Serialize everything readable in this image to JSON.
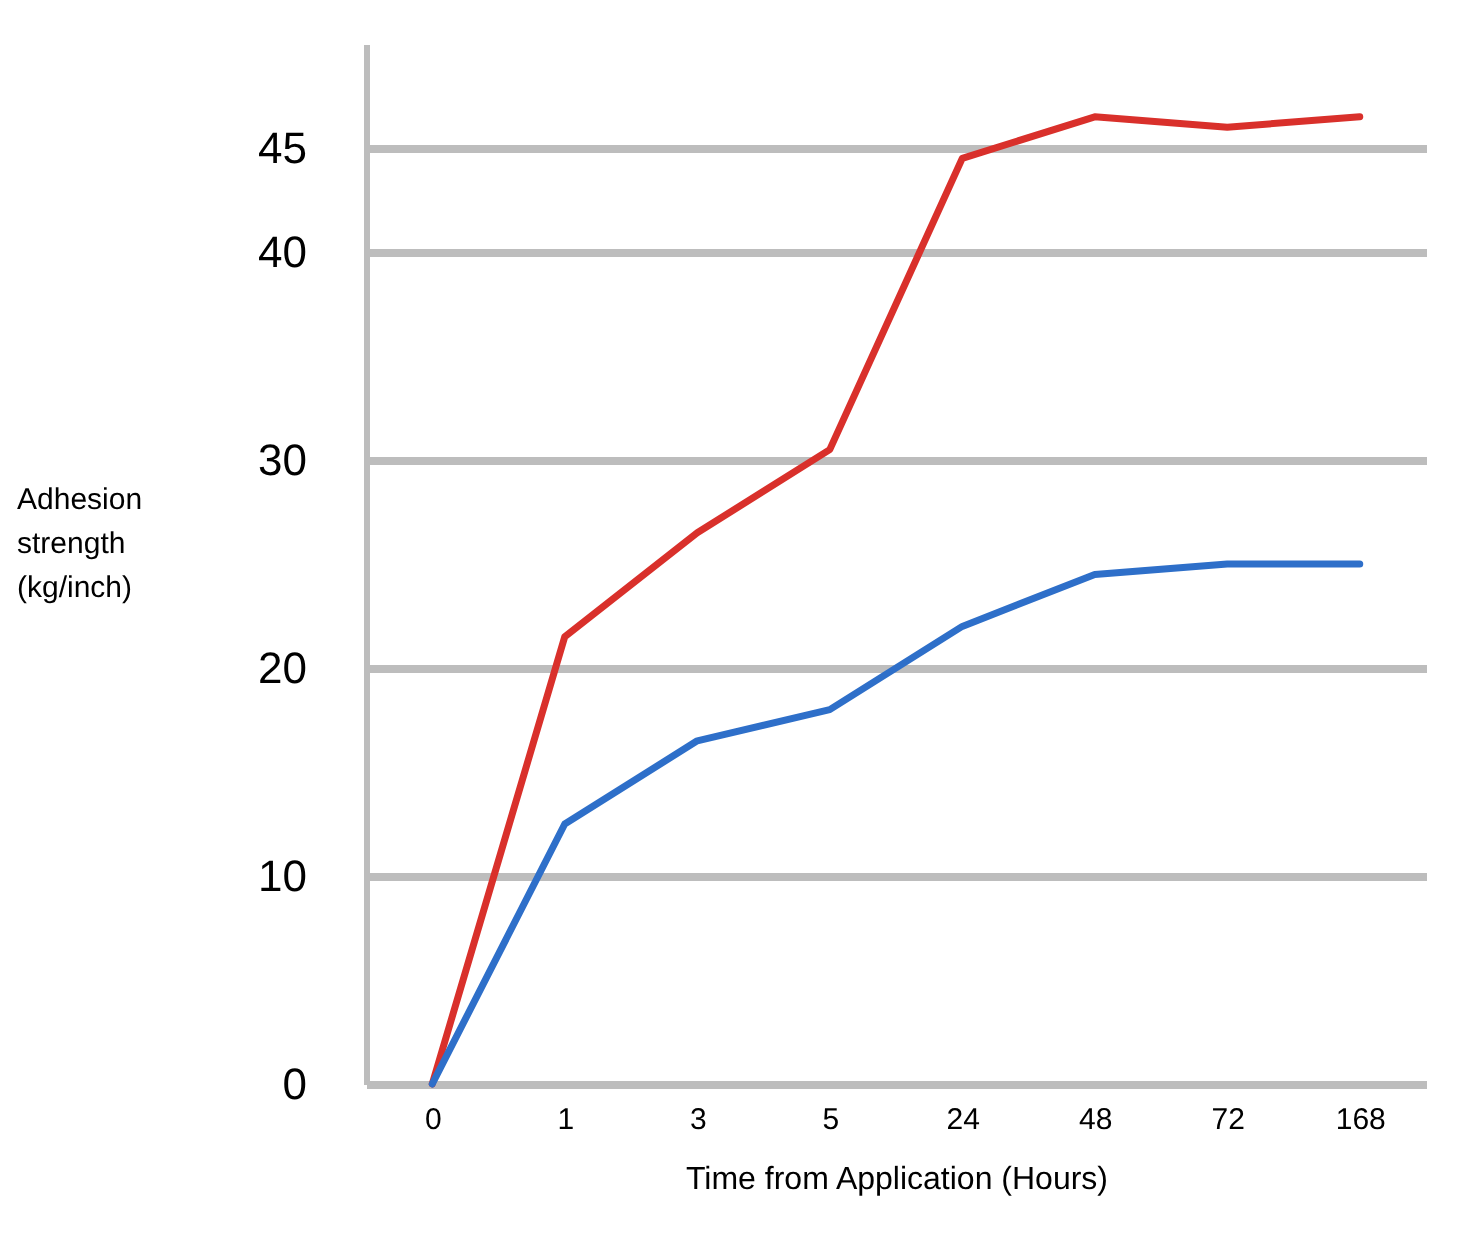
{
  "chart_data": {
    "type": "line",
    "xlabel": "Time from Application (Hours)",
    "ylabel": "Adhesion strength (kg/inch)",
    "categories": [
      "0",
      "1",
      "3",
      "5",
      "24",
      "48",
      "72",
      "168"
    ],
    "series": [
      {
        "color": "#d9302b",
        "values": [
          0,
          21.5,
          26.5,
          30.5,
          44.5,
          46.5,
          46,
          46.5
        ]
      },
      {
        "color": "#2e6fc9",
        "values": [
          0,
          12.5,
          16.5,
          18,
          22,
          24.5,
          25,
          25
        ]
      }
    ],
    "ylim": [
      0,
      50
    ],
    "yticks": [
      0,
      10,
      20,
      30,
      40,
      45
    ],
    "grid": "y",
    "legend": false,
    "marker": "none",
    "line_style": "solid"
  }
}
